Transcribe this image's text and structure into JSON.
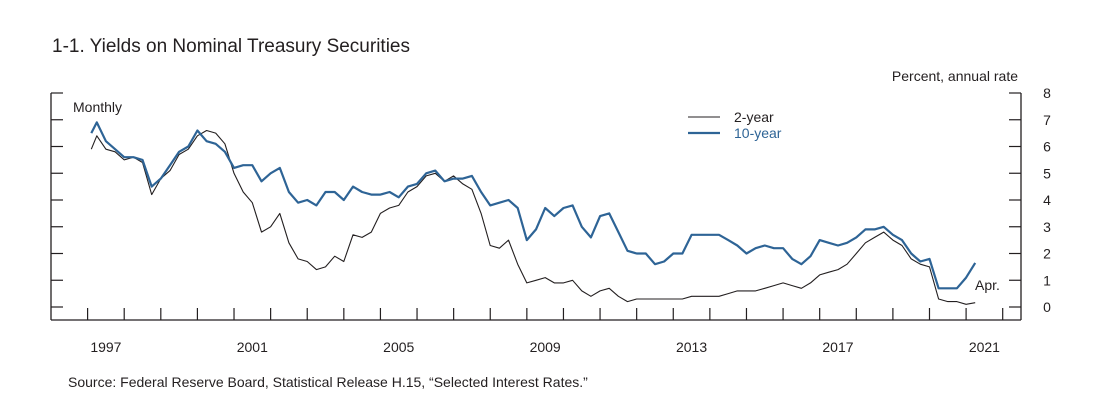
{
  "chart_data": {
    "type": "line",
    "title": "1-1. Yields on Nominal Treasury Securities",
    "ylabel": "Percent, annual rate",
    "xlabel": "",
    "frequency_label": "Monthly",
    "end_label": "Apr.",
    "source": "Source: Federal Reserve Board, Statistical Release H.15, “Selected Interest Rates.”",
    "xlim": [
      1996.0,
      2022.5
    ],
    "ylim": [
      0,
      8
    ],
    "x_tick_labels": [
      "1997",
      "2001",
      "2005",
      "2009",
      "2013",
      "2017",
      "2021"
    ],
    "y_tick_labels": [
      "0",
      "1",
      "2",
      "3",
      "4",
      "5",
      "6",
      "7",
      "8"
    ],
    "legend": {
      "placement": "top-center-right",
      "entries": [
        "2-year",
        "10-year"
      ]
    },
    "colors": {
      "2-year": "#231f20",
      "10-year": "#2e6496"
    },
    "x": [
      1997.1,
      1997.25,
      1997.5,
      1997.75,
      1998.0,
      1998.25,
      1998.5,
      1998.75,
      1999.0,
      1999.25,
      1999.5,
      1999.75,
      2000.0,
      2000.25,
      2000.5,
      2000.75,
      2001.0,
      2001.25,
      2001.5,
      2001.75,
      2002.0,
      2002.25,
      2002.5,
      2002.75,
      2003.0,
      2003.25,
      2003.5,
      2003.75,
      2004.0,
      2004.25,
      2004.5,
      2004.75,
      2005.0,
      2005.25,
      2005.5,
      2005.75,
      2006.0,
      2006.25,
      2006.5,
      2006.75,
      2007.0,
      2007.25,
      2007.5,
      2007.75,
      2008.0,
      2008.25,
      2008.5,
      2008.75,
      2009.0,
      2009.25,
      2009.5,
      2009.75,
      2010.0,
      2010.25,
      2010.5,
      2010.75,
      2011.0,
      2011.25,
      2011.5,
      2011.75,
      2012.0,
      2012.25,
      2012.5,
      2012.75,
      2013.0,
      2013.25,
      2013.5,
      2013.75,
      2014.0,
      2014.25,
      2014.5,
      2014.75,
      2015.0,
      2015.25,
      2015.5,
      2015.75,
      2016.0,
      2016.25,
      2016.5,
      2016.75,
      2017.0,
      2017.25,
      2017.5,
      2017.75,
      2018.0,
      2018.25,
      2018.5,
      2018.75,
      2019.0,
      2019.25,
      2019.5,
      2019.75,
      2020.0,
      2020.25,
      2020.5,
      2020.75,
      2021.0,
      2021.25
    ],
    "series": [
      {
        "name": "2-year",
        "values": [
          5.9,
          6.4,
          5.9,
          5.8,
          5.5,
          5.6,
          5.4,
          4.2,
          4.8,
          5.1,
          5.7,
          5.9,
          6.4,
          6.6,
          6.5,
          6.1,
          5.0,
          4.3,
          3.9,
          2.8,
          3.0,
          3.5,
          2.4,
          1.8,
          1.7,
          1.4,
          1.5,
          1.9,
          1.7,
          2.7,
          2.6,
          2.8,
          3.5,
          3.7,
          3.8,
          4.3,
          4.5,
          4.9,
          5.0,
          4.7,
          4.9,
          4.6,
          4.4,
          3.5,
          2.3,
          2.2,
          2.5,
          1.6,
          0.9,
          1.0,
          1.1,
          0.9,
          0.9,
          1.0,
          0.6,
          0.4,
          0.6,
          0.7,
          0.4,
          0.2,
          0.3,
          0.3,
          0.3,
          0.3,
          0.3,
          0.3,
          0.4,
          0.4,
          0.4,
          0.4,
          0.5,
          0.6,
          0.6,
          0.6,
          0.7,
          0.8,
          0.9,
          0.8,
          0.7,
          0.9,
          1.2,
          1.3,
          1.4,
          1.6,
          2.0,
          2.4,
          2.6,
          2.8,
          2.5,
          2.3,
          1.8,
          1.6,
          1.5,
          0.3,
          0.2,
          0.2,
          0.1,
          0.16
        ]
      },
      {
        "name": "10-year",
        "values": [
          6.5,
          6.9,
          6.2,
          5.9,
          5.6,
          5.6,
          5.5,
          4.5,
          4.8,
          5.3,
          5.8,
          6.0,
          6.6,
          6.2,
          6.1,
          5.8,
          5.2,
          5.3,
          5.3,
          4.7,
          5.0,
          5.2,
          4.3,
          3.9,
          4.0,
          3.8,
          4.3,
          4.3,
          4.0,
          4.5,
          4.3,
          4.2,
          4.2,
          4.3,
          4.1,
          4.5,
          4.6,
          5.0,
          5.1,
          4.7,
          4.8,
          4.8,
          4.9,
          4.3,
          3.8,
          3.9,
          4.0,
          3.7,
          2.5,
          2.9,
          3.7,
          3.4,
          3.7,
          3.8,
          3.0,
          2.6,
          3.4,
          3.5,
          2.8,
          2.1,
          2.0,
          2.0,
          1.6,
          1.7,
          2.0,
          2.0,
          2.7,
          2.7,
          2.7,
          2.7,
          2.5,
          2.3,
          2.0,
          2.2,
          2.3,
          2.2,
          2.2,
          1.8,
          1.6,
          1.9,
          2.5,
          2.4,
          2.3,
          2.4,
          2.6,
          2.9,
          2.9,
          3.0,
          2.7,
          2.5,
          2.0,
          1.7,
          1.8,
          0.7,
          0.7,
          0.7,
          1.1,
          1.65
        ]
      }
    ]
  }
}
